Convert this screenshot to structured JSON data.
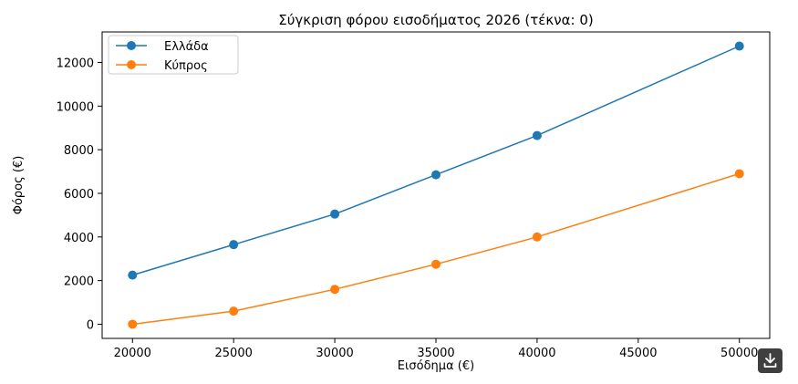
{
  "chart_data": {
    "type": "line",
    "title": "Σύγκριση φόρου εισοδήματος 2026 (τέκνα: 0)",
    "xlabel": "Εισόδημα (€)",
    "ylabel": "Φόρος (€)",
    "x": [
      20000,
      25000,
      30000,
      35000,
      40000,
      50000
    ],
    "series": [
      {
        "name": "Ελλάδα",
        "color": "#1f77b4",
        "values": [
          2250,
          3650,
          5050,
          6850,
          8650,
          12750
        ]
      },
      {
        "name": "Κύπρος",
        "color": "#ff7f0e",
        "values": [
          0,
          600,
          1600,
          2750,
          4000,
          6900
        ]
      }
    ],
    "xlim": [
      18500,
      51500
    ],
    "ylim": [
      -650,
      13400
    ],
    "xticks": [
      20000,
      25000,
      30000,
      35000,
      40000,
      45000,
      50000
    ],
    "yticks": [
      0,
      2000,
      4000,
      6000,
      8000,
      10000,
      12000
    ],
    "grid": false,
    "legend_position": "top-left"
  },
  "ui": {
    "download_icon": "download-icon"
  }
}
